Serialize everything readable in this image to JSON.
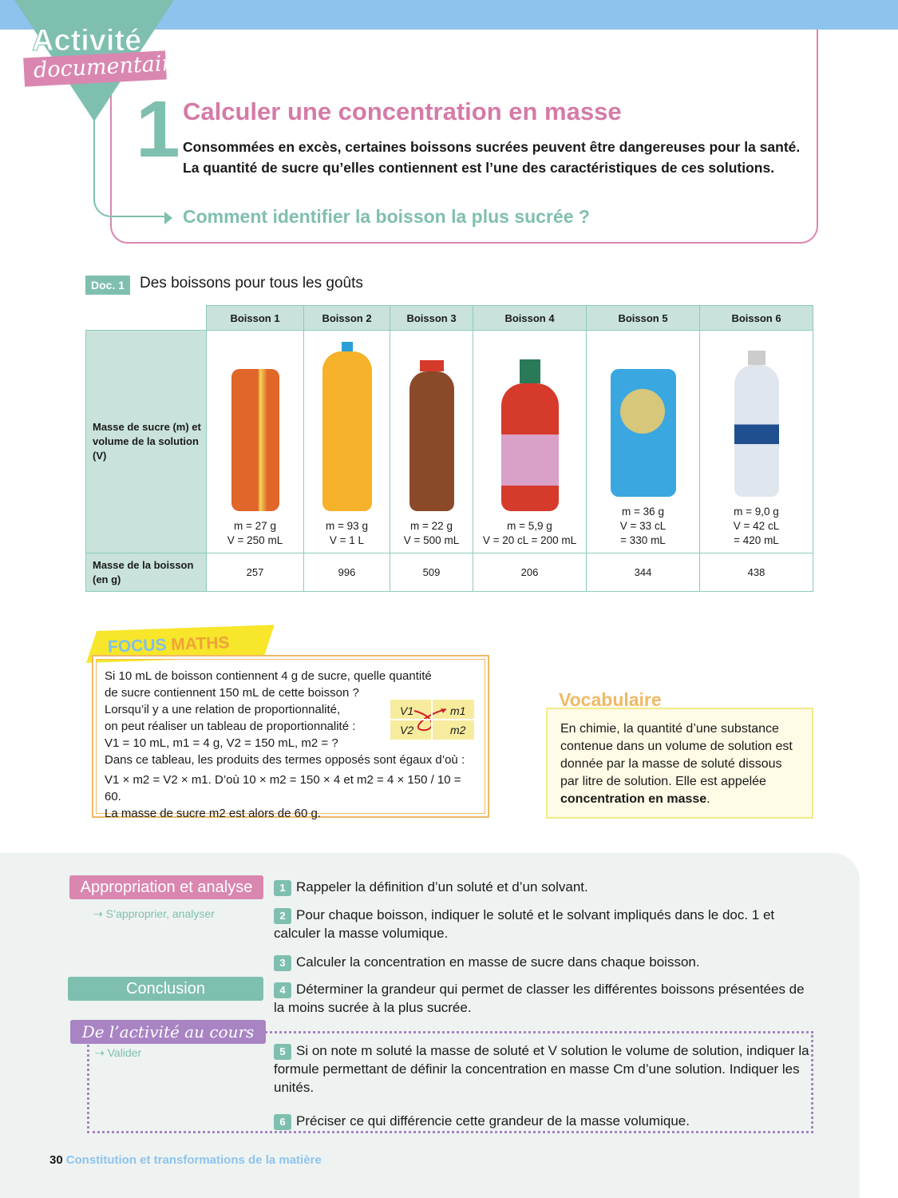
{
  "header": {
    "badge_line1": "Activité",
    "badge_line2": "documentaire",
    "number": "1",
    "title": "Calculer une concentration en masse",
    "intro": "Consommées en excès, certaines boissons sucrées peuvent être dangereuses pour la santé. La quantité de sucre qu’elles contiennent est l’une des caractéristiques de ces solutions.",
    "question": "Comment identifier la boisson la plus sucrée ?"
  },
  "doc1": {
    "badge": "Doc. 1",
    "title": "Des boissons pour tous les goûts",
    "row_label_image": "Masse de sucre (m) et volume de la solution (V)",
    "row_label_mass": "Masse de la boisson (en g)",
    "drinks": [
      {
        "name": "Boisson 1",
        "m": "m = 27 g",
        "v": "V = 250 mL",
        "v2": "",
        "mass": "257",
        "colors": [
          "#e0662a",
          "#f5d65a"
        ]
      },
      {
        "name": "Boisson 2",
        "m": "m = 93 g",
        "v": "V = 1 L",
        "v2": "",
        "mass": "996",
        "colors": [
          "#f5b22a",
          "#2a9fd6"
        ]
      },
      {
        "name": "Boisson 3",
        "m": "m = 22 g",
        "v": "V = 500 mL",
        "v2": "",
        "mass": "509",
        "colors": [
          "#8a4a2a",
          "#d63a2a"
        ]
      },
      {
        "name": "Boisson 4",
        "m": "m = 5,9 g",
        "v": "V = 20 cL = 200 mL",
        "v2": "",
        "mass": "206",
        "colors": [
          "#d63a2a",
          "#d9a0c8"
        ]
      },
      {
        "name": "Boisson 5",
        "m": "m = 36 g",
        "v": "V = 33 cL",
        "v2": "= 330 mL",
        "mass": "344",
        "colors": [
          "#3aa7e0",
          "#d6c77a"
        ]
      },
      {
        "name": "Boisson 6",
        "m": "m = 9,0 g",
        "v": "V = 42 cL",
        "v2": "= 420 mL",
        "mass": "438",
        "colors": [
          "#dfe6ee",
          "#1f4f8f"
        ]
      }
    ]
  },
  "focus": {
    "label1": "FOCUS",
    "label2": "MATHS",
    "lines": [
      "Si 10 mL de boisson contiennent 4 g de sucre, quelle quantité",
      "de sucre contiennent 150 mL de cette boisson ?",
      "Lorsqu’il y a une relation de proportionnalité,",
      "on peut réaliser un tableau de proportionnalité :",
      "V1 = 10 mL, m1 = 4 g, V2 = 150 mL, m2 = ?",
      "Dans ce tableau, les produits des termes opposés sont égaux d’où :",
      "V1 × m2 = V2 × m1. D’où 10 × m2 = 150 × 4 et m2 = 4 × 150 / 10 = 60.",
      "La masse de sucre m2 est alors de 60 g."
    ],
    "table": [
      "V1",
      "m1",
      "V2",
      "m2"
    ]
  },
  "vocab": {
    "title": "Vocabulaire",
    "text": "En chimie, la quantité d’une substance contenue dans un volume de solution est donnée par la masse de soluté dissous par litre de solution. Elle est appelée ",
    "term": "concentration en masse",
    "end": "."
  },
  "sections": {
    "appropriation": "Appropriation et analyse",
    "appropriation_sub": "⇢ S’approprier, analyser",
    "conclusion": "Conclusion",
    "cours": "De l’activité au cours",
    "cours_sub": "⇢ Valider"
  },
  "questions": [
    {
      "n": "1",
      "text": "Rappeler la définition d’un soluté et d’un solvant."
    },
    {
      "n": "2",
      "text": "Pour chaque boisson, indiquer le soluté et le solvant impliqués dans le doc. 1 et calculer la masse volumique."
    },
    {
      "n": "3",
      "text": "Calculer la concentration en masse de sucre dans chaque boisson."
    },
    {
      "n": "4",
      "text": "Déterminer la grandeur qui permet de classer les différentes boissons présentées de la moins sucrée à la plus sucrée."
    },
    {
      "n": "5",
      "text": "Si on note m soluté la masse de soluté et V solution le volume de solution, indiquer la formule permettant de définir la concentration en masse Cm d’une solution. Indiquer les unités."
    },
    {
      "n": "6",
      "text": "Préciser ce qui différencie cette grandeur de la masse volumique."
    }
  ],
  "footer": {
    "page": "30",
    "chapter": "Constitution et transformations de la matière"
  }
}
